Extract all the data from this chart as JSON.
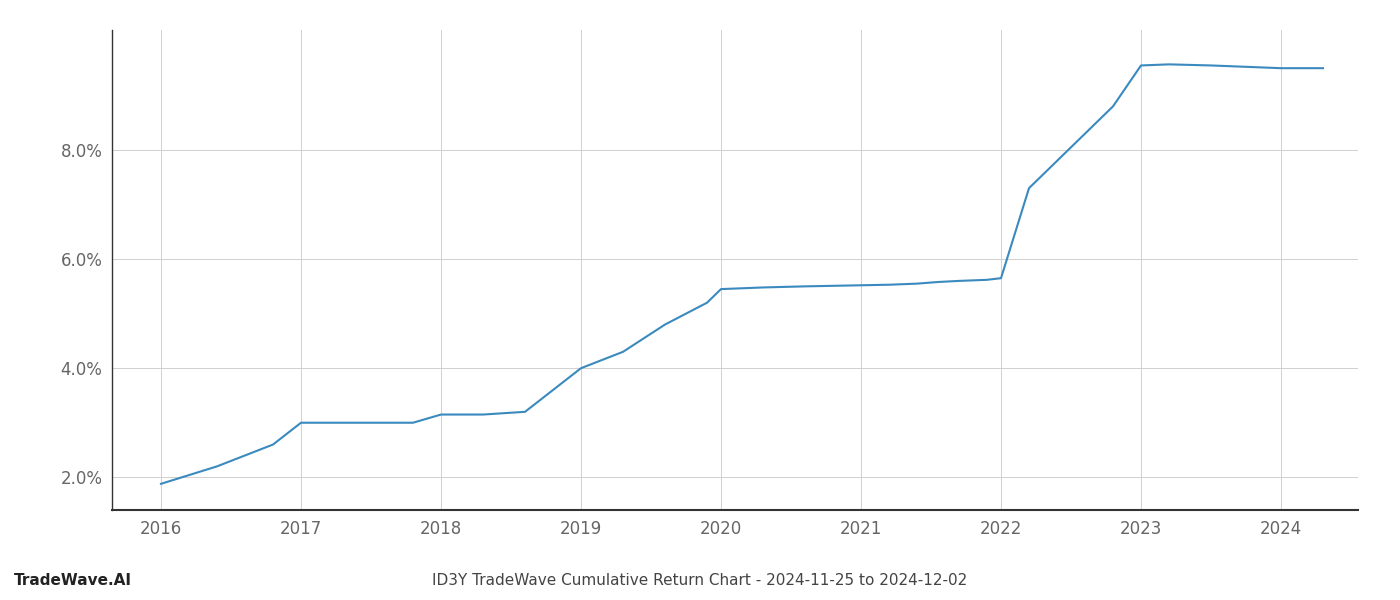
{
  "x": [
    2016.0,
    2016.4,
    2016.8,
    2017.0,
    2017.2,
    2017.5,
    2017.8,
    2018.0,
    2018.3,
    2018.6,
    2019.0,
    2019.3,
    2019.6,
    2019.9,
    2020.0,
    2020.3,
    2020.6,
    2021.0,
    2021.2,
    2021.4,
    2021.55,
    2021.7,
    2021.9,
    2022.0,
    2022.2,
    2022.5,
    2022.8,
    2023.0,
    2023.2,
    2023.5,
    2023.8,
    2024.0,
    2024.3
  ],
  "y": [
    0.0188,
    0.022,
    0.026,
    0.03,
    0.03,
    0.03,
    0.03,
    0.0315,
    0.0315,
    0.032,
    0.04,
    0.043,
    0.048,
    0.052,
    0.0545,
    0.0548,
    0.055,
    0.0552,
    0.0553,
    0.0555,
    0.0558,
    0.056,
    0.0562,
    0.0565,
    0.073,
    0.0805,
    0.088,
    0.0955,
    0.0957,
    0.0955,
    0.0952,
    0.095,
    0.095
  ],
  "line_color": "#3a8abf",
  "line_width": 1.5,
  "title": "ID3Y TradeWave Cumulative Return Chart - 2024-11-25 to 2024-12-02",
  "watermark": "TradeWave.AI",
  "xlim": [
    2015.65,
    2024.55
  ],
  "ylim": [
    0.014,
    0.102
  ],
  "yticks": [
    0.02,
    0.04,
    0.06,
    0.08
  ],
  "xticks": [
    2016,
    2017,
    2018,
    2019,
    2020,
    2021,
    2022,
    2023,
    2024
  ],
  "background_color": "#ffffff",
  "grid_color": "#d0d0d0",
  "tick_label_color": "#666666",
  "title_color": "#444444",
  "title_fontsize": 11,
  "watermark_fontsize": 11,
  "tick_fontsize": 12
}
